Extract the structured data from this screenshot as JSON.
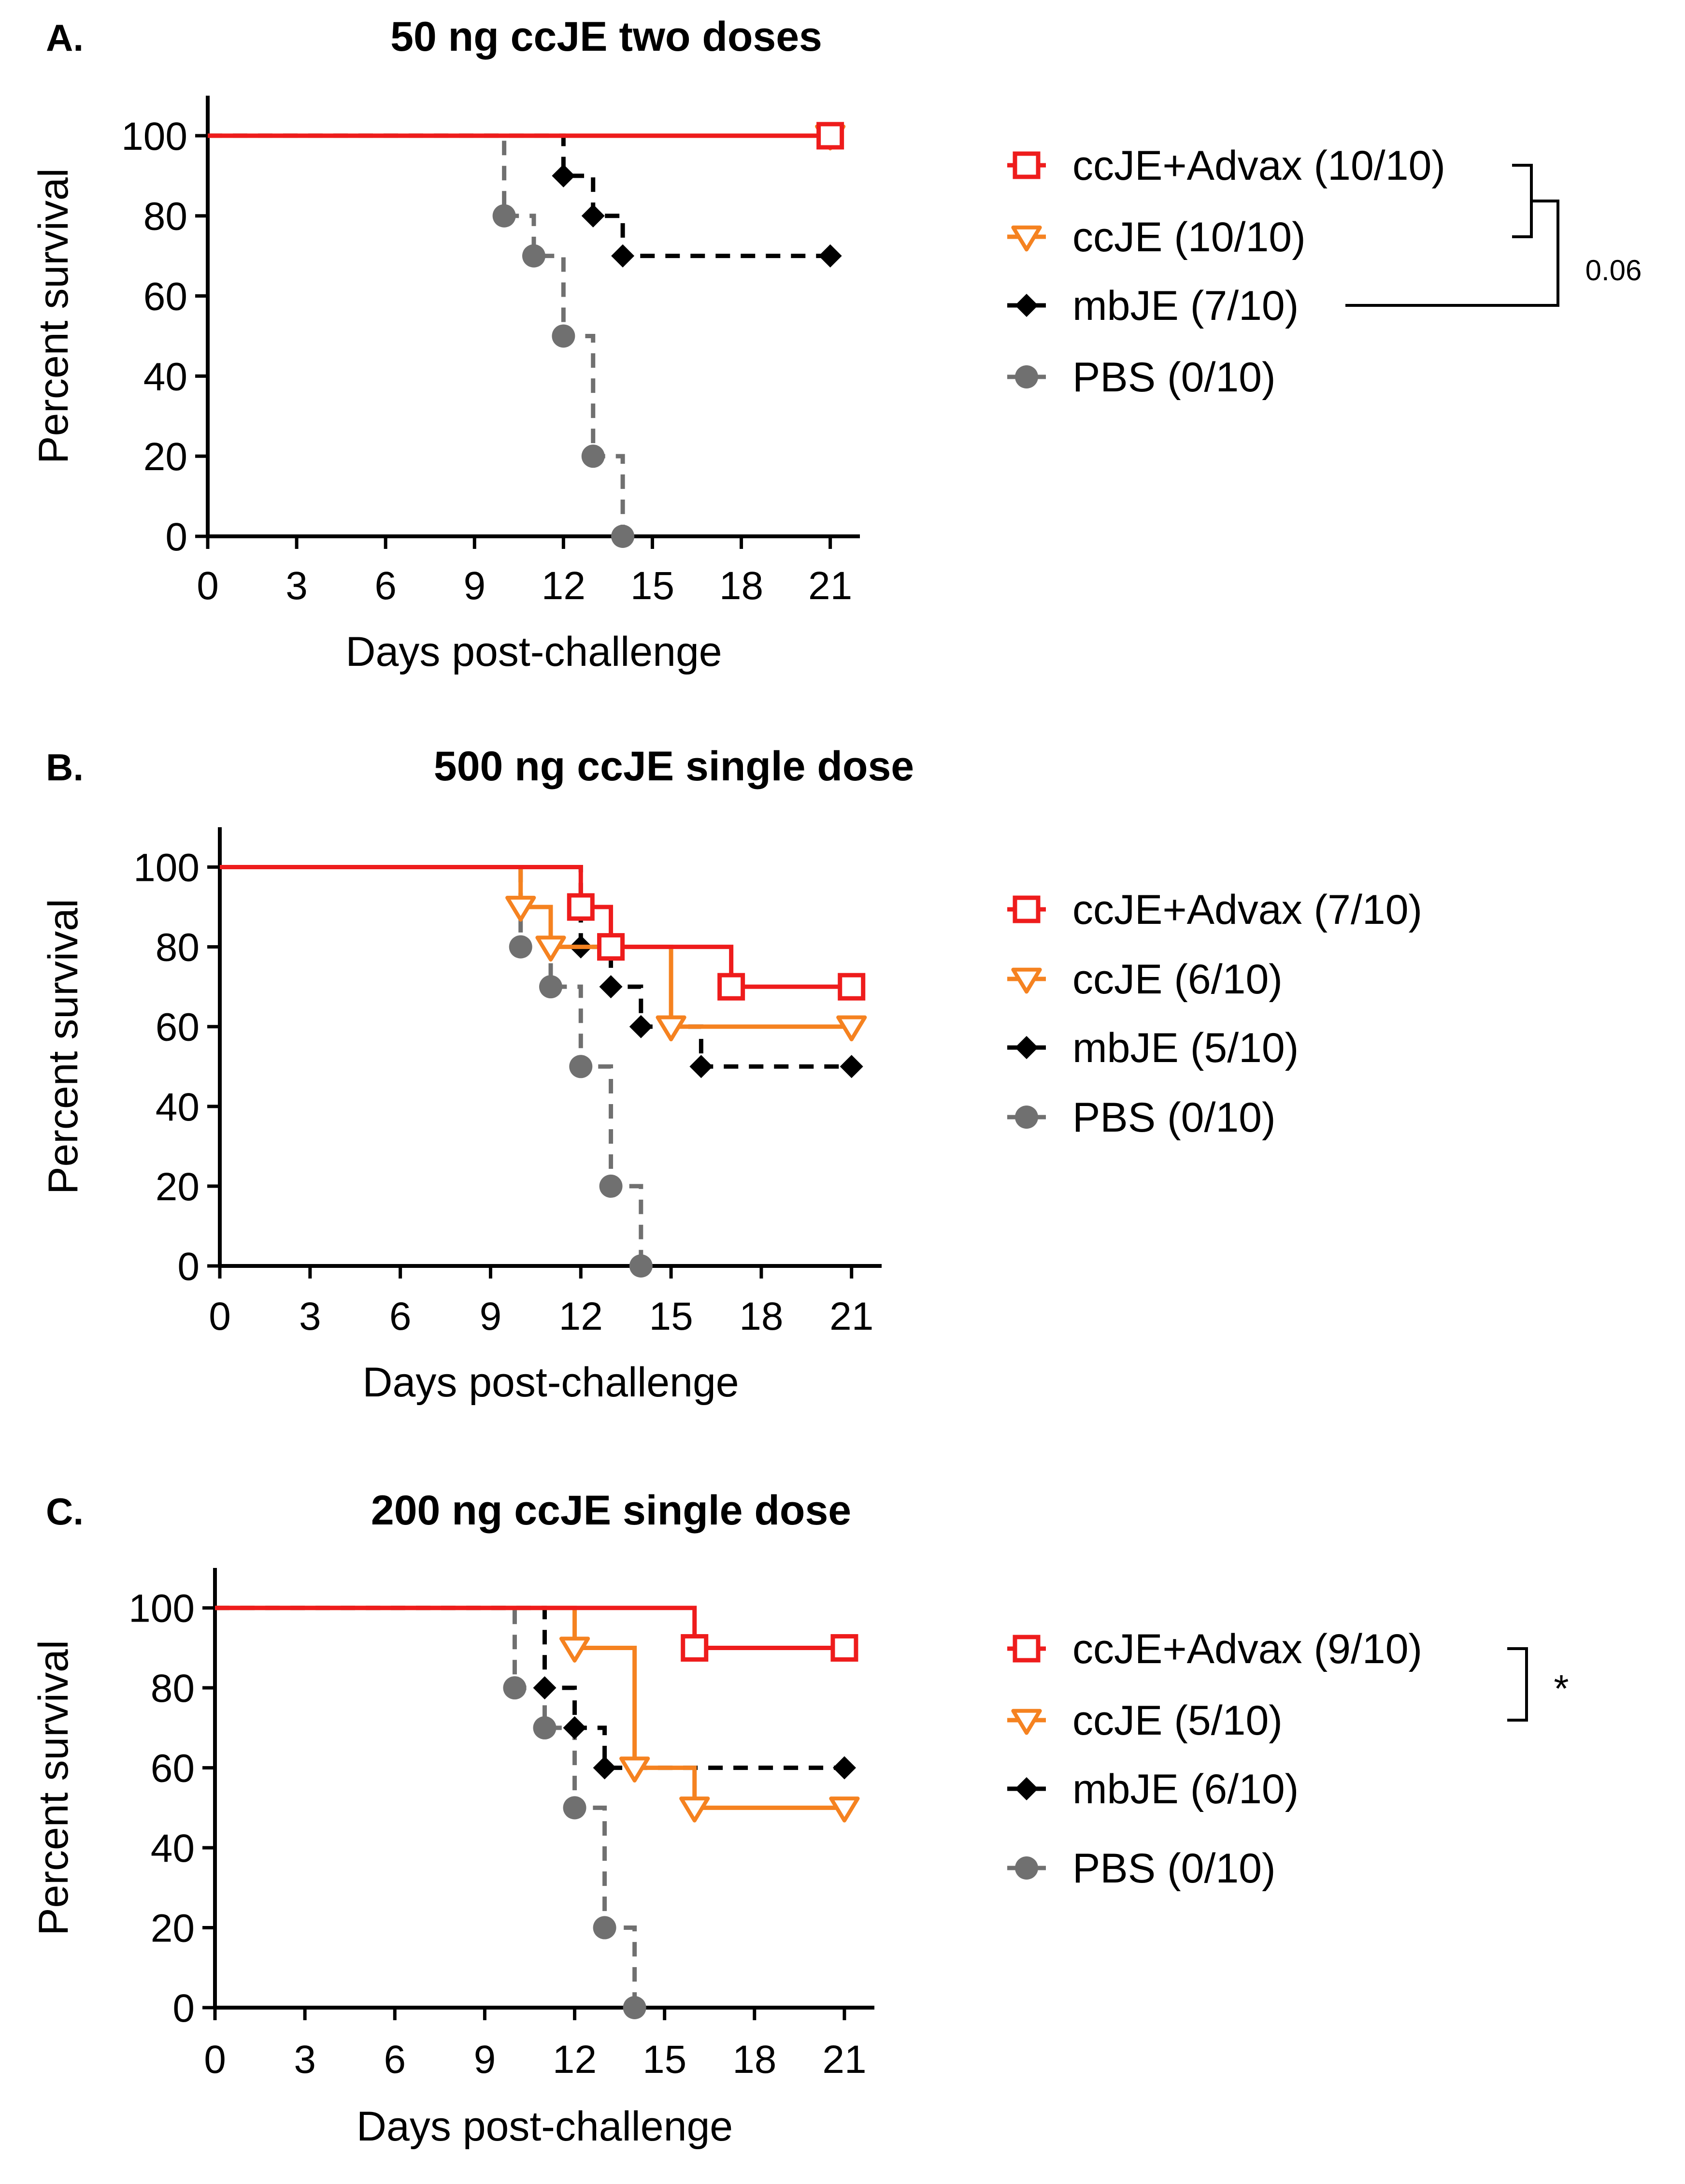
{
  "figure": "Kaplan-Meier survival curves",
  "colors": {
    "ccJE+Advax": "#ee1c1c",
    "ccJE": "#f58220",
    "mbJE": "#000000",
    "PBS": "#707070"
  },
  "chart_data": [
    {
      "type": "line",
      "panel": "A.",
      "title": "50 ng ccJE two doses",
      "xlabel": "Days post-challenge",
      "ylabel": "Percent survival",
      "xlim": [
        0,
        22
      ],
      "ylim": [
        0,
        110
      ],
      "xticks": [
        "0",
        "3",
        "6",
        "9",
        "12",
        "15",
        "18",
        "21"
      ],
      "yticks": [
        "0",
        "20",
        "40",
        "60",
        "80",
        "100"
      ],
      "legend_position": "right",
      "series": [
        {
          "name": "ccJE+Advax",
          "label": "ccJE+Advax (10/10)",
          "marker": "square-open",
          "dashed": false,
          "steps": [
            [
              0,
              100
            ],
            [
              21,
              100
            ]
          ],
          "markers": [
            [
              21,
              100
            ]
          ]
        },
        {
          "name": "ccJE",
          "label": "ccJE (10/10)",
          "marker": "triangle-down-open",
          "dashed": false,
          "steps": [
            [
              0,
              100
            ],
            [
              21,
              100
            ]
          ],
          "markers": [
            [
              21,
              100
            ]
          ]
        },
        {
          "name": "mbJE",
          "label": "mbJE (7/10)",
          "marker": "diamond",
          "dashed": true,
          "steps": [
            [
              0,
              100
            ],
            [
              12,
              90
            ],
            [
              13,
              80
            ],
            [
              14,
              70
            ],
            [
              21,
              70
            ]
          ],
          "markers": [
            [
              12,
              90
            ],
            [
              13,
              80
            ],
            [
              14,
              70
            ],
            [
              21,
              70
            ]
          ]
        },
        {
          "name": "PBS",
          "label": "PBS (0/10)",
          "marker": "circle",
          "dashed": true,
          "steps": [
            [
              0,
              100
            ],
            [
              10,
              80
            ],
            [
              11,
              70
            ],
            [
              12,
              50
            ],
            [
              13,
              20
            ],
            [
              14,
              0
            ]
          ],
          "markers": [
            [
              10,
              80
            ],
            [
              11,
              70
            ],
            [
              12,
              50
            ],
            [
              13,
              20
            ],
            [
              14,
              0
            ]
          ]
        }
      ],
      "significance": [
        {
          "label": "",
          "from": 0,
          "to": 1
        },
        {
          "label": "0.06",
          "from": "bracket",
          "to": 2
        }
      ]
    },
    {
      "type": "line",
      "panel": "B.",
      "title": "500 ng ccJE single dose",
      "xlabel": "Days post-challenge",
      "ylabel": "Percent survival",
      "xlim": [
        0,
        22
      ],
      "ylim": [
        0,
        110
      ],
      "xticks": [
        "0",
        "3",
        "6",
        "9",
        "12",
        "15",
        "18",
        "21"
      ],
      "yticks": [
        "0",
        "20",
        "40",
        "60",
        "80",
        "100"
      ],
      "legend_position": "right",
      "series": [
        {
          "name": "ccJE+Advax",
          "label": "ccJE+Advax (7/10)",
          "marker": "square-open",
          "dashed": false,
          "steps": [
            [
              0,
              100
            ],
            [
              12,
              90
            ],
            [
              13,
              80
            ],
            [
              17,
              70
            ],
            [
              21,
              70
            ]
          ],
          "markers": [
            [
              12,
              90
            ],
            [
              13,
              80
            ],
            [
              17,
              70
            ],
            [
              21,
              70
            ]
          ]
        },
        {
          "name": "ccJE",
          "label": "ccJE (6/10)",
          "marker": "triangle-down-open",
          "dashed": false,
          "steps": [
            [
              0,
              100
            ],
            [
              10,
              90
            ],
            [
              11,
              80
            ],
            [
              15,
              60
            ],
            [
              21,
              60
            ]
          ],
          "markers": [
            [
              10,
              90
            ],
            [
              11,
              80
            ],
            [
              15,
              60
            ],
            [
              21,
              60
            ]
          ]
        },
        {
          "name": "mbJE",
          "label": "mbJE (5/10)",
          "marker": "diamond",
          "dashed": true,
          "steps": [
            [
              0,
              100
            ],
            [
              12,
              80
            ],
            [
              13,
              70
            ],
            [
              14,
              60
            ],
            [
              16,
              50
            ],
            [
              21,
              50
            ]
          ],
          "markers": [
            [
              12,
              80
            ],
            [
              13,
              70
            ],
            [
              14,
              60
            ],
            [
              16,
              50
            ],
            [
              21,
              50
            ]
          ]
        },
        {
          "name": "PBS",
          "label": "PBS (0/10)",
          "marker": "circle",
          "dashed": true,
          "steps": [
            [
              0,
              100
            ],
            [
              10,
              80
            ],
            [
              11,
              70
            ],
            [
              12,
              50
            ],
            [
              13,
              20
            ],
            [
              14,
              0
            ]
          ],
          "markers": [
            [
              10,
              80
            ],
            [
              11,
              70
            ],
            [
              12,
              50
            ],
            [
              13,
              20
            ],
            [
              14,
              0
            ]
          ]
        }
      ],
      "significance": []
    },
    {
      "type": "line",
      "panel": "C.",
      "title": "200 ng ccJE single dose",
      "xlabel": "Days post-challenge",
      "ylabel": "Percent survival",
      "xlim": [
        0,
        22
      ],
      "ylim": [
        0,
        110
      ],
      "xticks": [
        "0",
        "3",
        "6",
        "9",
        "12",
        "15",
        "18",
        "21"
      ],
      "yticks": [
        "0",
        "20",
        "40",
        "60",
        "80",
        "100"
      ],
      "legend_position": "right",
      "series": [
        {
          "name": "ccJE+Advax",
          "label": "ccJE+Advax (9/10)",
          "marker": "square-open",
          "dashed": false,
          "steps": [
            [
              0,
              100
            ],
            [
              16,
              90
            ],
            [
              21,
              90
            ]
          ],
          "markers": [
            [
              16,
              90
            ],
            [
              21,
              90
            ]
          ]
        },
        {
          "name": "ccJE",
          "label": "ccJE (5/10)",
          "marker": "triangle-down-open",
          "dashed": false,
          "steps": [
            [
              0,
              100
            ],
            [
              12,
              90
            ],
            [
              14,
              60
            ],
            [
              16,
              50
            ],
            [
              21,
              50
            ]
          ],
          "markers": [
            [
              12,
              90
            ],
            [
              14,
              60
            ],
            [
              16,
              50
            ],
            [
              21,
              50
            ]
          ]
        },
        {
          "name": "mbJE",
          "label": "mbJE (6/10)",
          "marker": "diamond",
          "dashed": true,
          "steps": [
            [
              0,
              100
            ],
            [
              11,
              80
            ],
            [
              12,
              70
            ],
            [
              13,
              60
            ],
            [
              21,
              60
            ]
          ],
          "markers": [
            [
              11,
              80
            ],
            [
              12,
              70
            ],
            [
              13,
              60
            ],
            [
              21,
              60
            ]
          ]
        },
        {
          "name": "PBS",
          "label": "PBS (0/10)",
          "marker": "circle",
          "dashed": true,
          "steps": [
            [
              0,
              100
            ],
            [
              10,
              80
            ],
            [
              11,
              70
            ],
            [
              12,
              50
            ],
            [
              13,
              20
            ],
            [
              14,
              0
            ]
          ],
          "markers": [
            [
              10,
              80
            ],
            [
              11,
              70
            ],
            [
              12,
              50
            ],
            [
              13,
              20
            ],
            [
              14,
              0
            ]
          ]
        }
      ],
      "significance": [
        {
          "label": "*",
          "from": 0,
          "to": 1
        }
      ]
    }
  ]
}
